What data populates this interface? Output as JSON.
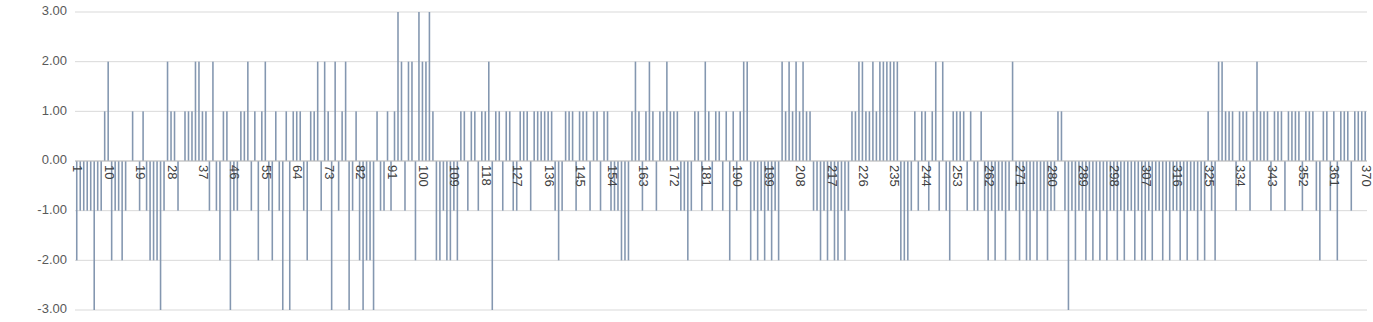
{
  "chart_data": {
    "type": "bar",
    "categories": [
      1,
      null,
      null,
      null,
      null,
      null,
      null,
      null,
      null,
      10,
      null,
      null,
      null,
      null,
      null,
      null,
      null,
      null,
      19,
      null,
      null,
      null,
      null,
      null,
      null,
      null,
      null,
      28,
      null,
      null,
      null,
      null,
      null,
      null,
      null,
      null,
      37,
      null,
      null,
      null,
      null,
      null,
      null,
      null,
      null,
      46,
      null,
      null,
      null,
      null,
      null,
      null,
      null,
      null,
      55,
      null,
      null,
      null,
      null,
      null,
      null,
      null,
      null,
      64,
      null,
      null,
      null,
      null,
      null,
      null,
      null,
      null,
      73,
      null,
      null,
      null,
      null,
      null,
      null,
      null,
      null,
      82,
      null,
      null,
      null,
      null,
      null,
      null,
      null,
      null,
      91,
      null,
      null,
      null,
      null,
      null,
      null,
      null,
      null,
      100,
      null,
      null,
      null,
      null,
      null,
      null,
      null,
      null,
      109,
      null,
      null,
      null,
      null,
      null,
      null,
      null,
      null,
      118,
      null,
      null,
      null,
      null,
      null,
      null,
      null,
      null,
      127,
      null,
      null,
      null,
      null,
      null,
      null,
      null,
      null,
      136,
      null,
      null,
      null,
      null,
      null,
      null,
      null,
      null,
      145,
      null,
      null,
      null,
      null,
      null,
      null,
      null,
      null,
      154,
      null,
      null,
      null,
      null,
      null,
      null,
      null,
      null,
      163,
      null,
      null,
      null,
      null,
      null,
      null,
      null,
      null,
      172,
      null,
      null,
      null,
      null,
      null,
      null,
      null,
      null,
      181,
      null,
      null,
      null,
      null,
      null,
      null,
      null,
      null,
      190,
      null,
      null,
      null,
      null,
      null,
      null,
      null,
      null,
      199,
      null,
      null,
      null,
      null,
      null,
      null,
      null,
      null,
      208,
      null,
      null,
      null,
      null,
      null,
      null,
      null,
      null,
      217,
      null,
      null,
      null,
      null,
      null,
      null,
      null,
      null,
      226,
      null,
      null,
      null,
      null,
      null,
      null,
      null,
      null,
      235,
      null,
      null,
      null,
      null,
      null,
      null,
      null,
      null,
      244,
      null,
      null,
      null,
      null,
      null,
      null,
      null,
      null,
      253,
      null,
      null,
      null,
      null,
      null,
      null,
      null,
      null,
      262,
      null,
      null,
      null,
      null,
      null,
      null,
      null,
      null,
      271,
      null,
      null,
      null,
      null,
      null,
      null,
      null,
      null,
      280,
      null,
      null,
      null,
      null,
      null,
      null,
      null,
      null,
      289,
      null,
      null,
      null,
      null,
      null,
      null,
      null,
      null,
      298,
      null,
      null,
      null,
      null,
      null,
      null,
      null,
      null,
      307,
      null,
      null,
      null,
      null,
      null,
      null,
      null,
      null,
      316,
      null,
      null,
      null,
      null,
      null,
      null,
      null,
      null,
      325,
      null,
      null,
      null,
      null,
      null,
      null,
      null,
      null,
      334,
      null,
      null,
      null,
      null,
      null,
      null,
      null,
      null,
      343,
      null,
      null,
      null,
      null,
      null,
      null,
      null,
      null,
      352,
      null,
      null,
      null,
      null,
      null,
      null,
      null,
      null,
      361,
      null,
      null,
      null,
      null,
      null,
      null,
      null,
      null,
      370
    ],
    "values": [
      -2,
      -1,
      -1,
      -1,
      -1,
      -3,
      -1,
      -1,
      1,
      2,
      -2,
      -1,
      -1,
      -2,
      -1,
      0,
      1,
      0,
      -1,
      1,
      -1,
      -2,
      -2,
      -2,
      -3,
      -1,
      2,
      1,
      1,
      -1,
      0,
      1,
      1,
      1,
      2,
      2,
      1,
      1,
      -1,
      2,
      -1,
      -2,
      1,
      1,
      -3,
      -1,
      -1,
      1,
      1,
      2,
      -1,
      1,
      -2,
      1,
      2,
      -1,
      -2,
      1,
      -1,
      -3,
      1,
      -3,
      1,
      1,
      1,
      -1,
      -2,
      1,
      1,
      2,
      -1,
      2,
      1,
      -3,
      2,
      -1,
      1,
      2,
      -3,
      -1,
      1,
      -2,
      -3,
      -2,
      -2,
      -3,
      1,
      -1,
      -1,
      1,
      -1,
      1,
      3,
      2,
      -1,
      2,
      2,
      -2,
      3,
      2,
      2,
      3,
      1,
      -2,
      -2,
      -1,
      -2,
      -2,
      -1,
      -2,
      1,
      1,
      -1,
      1,
      1,
      -1,
      1,
      1,
      2,
      -3,
      1,
      1,
      -1,
      1,
      1,
      -1,
      -1,
      1,
      1,
      1,
      -1,
      1,
      1,
      1,
      1,
      1,
      1,
      -1,
      -2,
      -1,
      1,
      1,
      1,
      -1,
      1,
      1,
      1,
      -1,
      1,
      1,
      -1,
      1,
      1,
      -1,
      -1,
      -1,
      -2,
      -2,
      -2,
      1,
      2,
      1,
      -1,
      1,
      2,
      1,
      -1,
      1,
      1,
      2,
      1,
      1,
      1,
      -1,
      -1,
      -2,
      -1,
      1,
      1,
      -1,
      2,
      1,
      -1,
      1,
      1,
      -1,
      1,
      -2,
      1,
      -1,
      1,
      2,
      2,
      -2,
      -1,
      -2,
      -1,
      -2,
      -1,
      -2,
      -1,
      -2,
      2,
      1,
      2,
      1,
      2,
      1,
      2,
      1,
      1,
      -1,
      -1,
      -2,
      -1,
      -2,
      -1,
      -2,
      -2,
      -1,
      -2,
      -1,
      1,
      1,
      2,
      2,
      1,
      1,
      2,
      1,
      2,
      2,
      2,
      2,
      2,
      2,
      -2,
      -2,
      -2,
      -1,
      1,
      -1,
      1,
      1,
      -1,
      1,
      2,
      -1,
      2,
      -1,
      -2,
      1,
      1,
      1,
      1,
      -1,
      1,
      -1,
      -1,
      1,
      -1,
      -2,
      -1,
      -2,
      -1,
      -1,
      -2,
      -1,
      2,
      -1,
      -2,
      -1,
      -2,
      -2,
      -1,
      -2,
      -1,
      -1,
      -2,
      -1,
      -1,
      1,
      1,
      -1,
      -3,
      -1,
      -2,
      -1,
      -1,
      -2,
      -1,
      -2,
      -1,
      -2,
      -1,
      -2,
      -1,
      -1,
      -2,
      -1,
      -2,
      -1,
      -1,
      -2,
      -1,
      -2,
      -2,
      -1,
      -2,
      -1,
      -1,
      -2,
      -1,
      -2,
      -1,
      -1,
      -2,
      -1,
      -2,
      -1,
      -1,
      -2,
      -1,
      -2,
      1,
      -1,
      -2,
      2,
      2,
      1,
      1,
      1,
      -1,
      1,
      1,
      1,
      -1,
      1,
      2,
      1,
      1,
      1,
      -1,
      1,
      1,
      1,
      -1,
      1,
      1,
      1,
      1,
      -1,
      1,
      1,
      1,
      -1,
      -2,
      1,
      1,
      -1,
      1,
      -2,
      1,
      1,
      1,
      -1,
      1,
      1,
      1,
      1
    ],
    "color": "#8497b0",
    "ylim": [
      -3,
      3
    ],
    "yticks": [
      {
        "value": -3,
        "label": "-3.00"
      },
      {
        "value": -2,
        "label": "-2.00"
      },
      {
        "value": -1,
        "label": "-1.00"
      },
      {
        "value": 0,
        "label": "0.00"
      },
      {
        "value": 1,
        "label": "1.00"
      },
      {
        "value": 2,
        "label": "2.00"
      },
      {
        "value": 3,
        "label": "3.00"
      }
    ],
    "grid": true
  }
}
